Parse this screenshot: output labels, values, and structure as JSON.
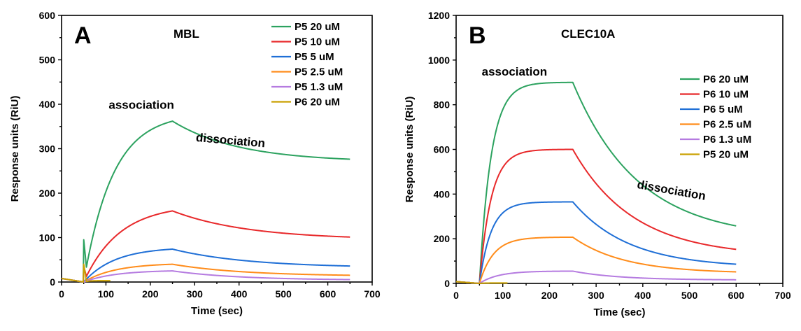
{
  "chart_data": [
    {
      "type": "line",
      "panel_label": "A",
      "title": "MBL",
      "xlabel": "Time (sec)",
      "ylabel": "Response units (RiU)",
      "xlim": [
        0,
        700
      ],
      "ylim": [
        0,
        600
      ],
      "x_ticks": [
        0,
        100,
        200,
        300,
        400,
        500,
        600,
        700
      ],
      "y_ticks": [
        0,
        100,
        200,
        300,
        400,
        500,
        600
      ],
      "legend_position": "top-right",
      "annotations": [
        {
          "text": "association",
          "x": 180,
          "y": 390
        },
        {
          "text": "dissociation",
          "x": 380,
          "y": 310,
          "rotation": 5
        }
      ],
      "injection_start": 50,
      "injection_end": 250,
      "run_end": 650,
      "series": [
        {
          "name": "P5 20 uM",
          "color": "#2ca25f",
          "peak": 362,
          "plateau": 270,
          "rise_tau": 65,
          "decay_tau": 150,
          "spike": 95
        },
        {
          "name": "P5 10 uM",
          "color": "#e8292b",
          "peak": 160,
          "plateau": 95,
          "rise_tau": 80,
          "decay_tau": 170,
          "spike": 35
        },
        {
          "name": "P5 5 uM",
          "color": "#1f6fd6",
          "peak": 74,
          "plateau": 32,
          "rise_tau": 70,
          "decay_tau": 170,
          "spike": 0
        },
        {
          "name": "P5 2.5 uM",
          "color": "#ff8c1a",
          "peak": 40,
          "plateau": 13,
          "rise_tau": 70,
          "decay_tau": 160,
          "spike": 0
        },
        {
          "name": "P5 1.3 uM",
          "color": "#b57be0",
          "peak": 25,
          "plateau": 4,
          "rise_tau": 70,
          "decay_tau": 150,
          "spike": 0
        },
        {
          "name": "P6 20 uM",
          "color": "#c9a000",
          "peak": 3,
          "plateau": 0,
          "rise_tau": 10,
          "decay_tau": 20,
          "spike": 40,
          "end": 110
        }
      ]
    },
    {
      "type": "line",
      "panel_label": "B",
      "title": "CLEC10A",
      "xlabel": "Time (sec)",
      "ylabel": "Response units (RiU)",
      "xlim": [
        0,
        700
      ],
      "ylim": [
        0,
        1200
      ],
      "x_ticks": [
        0,
        100,
        200,
        300,
        400,
        500,
        600,
        700
      ],
      "y_ticks": [
        0,
        200,
        400,
        600,
        800,
        1000,
        1200
      ],
      "legend_position": "right",
      "annotations": [
        {
          "text": "association",
          "x": 125,
          "y": 930
        },
        {
          "text": "dissociation",
          "x": 460,
          "y": 400,
          "rotation": 10
        }
      ],
      "injection_start": 50,
      "injection_end": 250,
      "run_end": 600,
      "series": [
        {
          "name": "P6 20 uM",
          "color": "#2ca25f",
          "peak": 900,
          "plateau": 200,
          "rise_tau": 25,
          "decay_tau": 140,
          "spike": 0
        },
        {
          "name": "P6 10 uM",
          "color": "#e8292b",
          "peak": 600,
          "plateau": 120,
          "rise_tau": 25,
          "decay_tau": 130,
          "spike": 0
        },
        {
          "name": "P6 5 uM",
          "color": "#1f6fd6",
          "peak": 365,
          "plateau": 70,
          "rise_tau": 25,
          "decay_tau": 120,
          "spike": 0
        },
        {
          "name": "P6 2.5 uM",
          "color": "#ff8c1a",
          "peak": 207,
          "plateau": 45,
          "rise_tau": 30,
          "decay_tau": 110,
          "spike": 0
        },
        {
          "name": "P6 1.3 uM",
          "color": "#b57be0",
          "peak": 55,
          "plateau": 15,
          "rise_tau": 40,
          "decay_tau": 100,
          "spike": 0
        },
        {
          "name": "P5 20 uM",
          "color": "#c9a000",
          "peak": 2,
          "plateau": 0,
          "rise_tau": 10,
          "decay_tau": 20,
          "spike": 0,
          "end": 110
        }
      ]
    }
  ]
}
